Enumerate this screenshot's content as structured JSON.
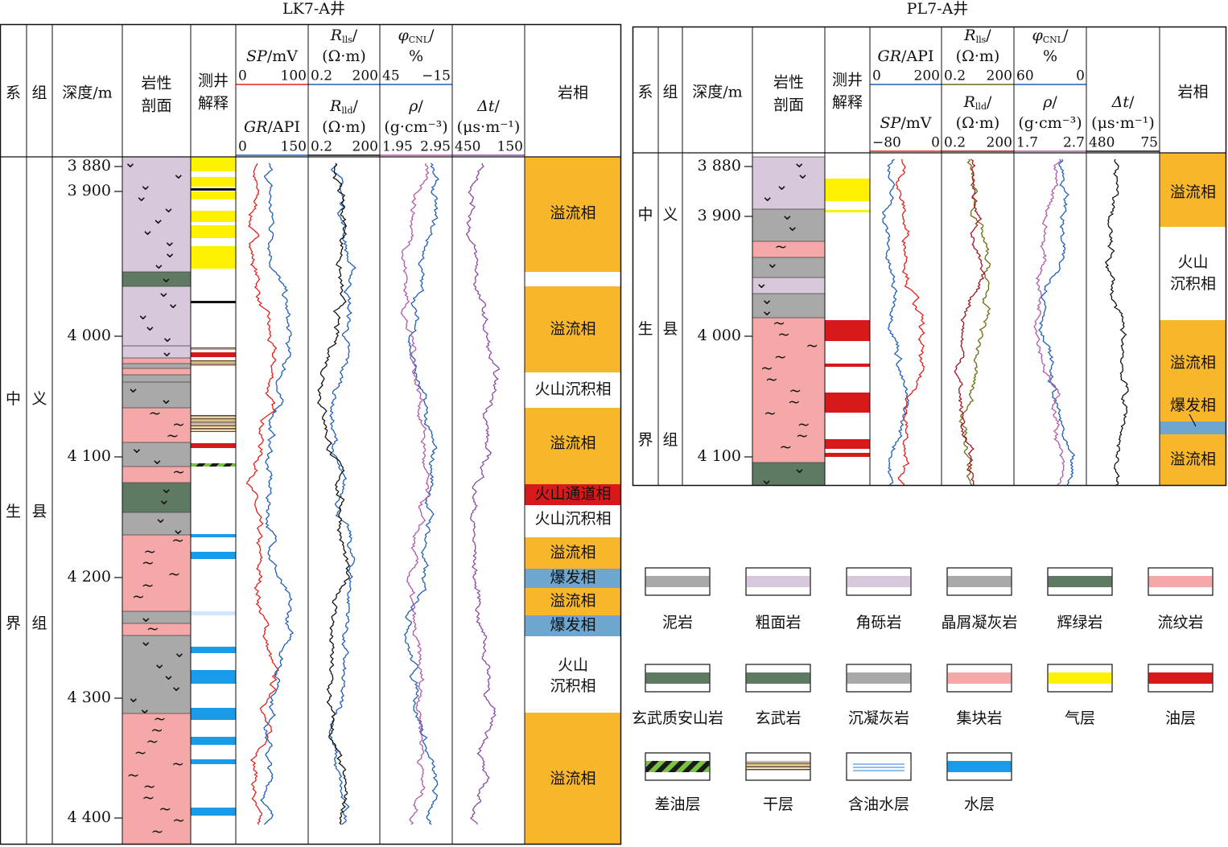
{
  "wells": [
    {
      "title": "LK7-A井",
      "headers": {
        "system": "系",
        "group": "组",
        "depth": "深度/m",
        "lithology": [
          "岩性",
          "剖面"
        ],
        "interpretation": [
          "测井",
          "解释"
        ],
        "facies": "岩相"
      },
      "curves": [
        {
          "name": "SP",
          "tail": "/mV",
          "scale": [
            "0",
            "100"
          ],
          "color": "#e0201b"
        },
        {
          "name": "GR",
          "tail": "/API",
          "scale": [
            "0",
            "150"
          ],
          "color": "#1f5fb4"
        },
        {
          "name": "R",
          "sub": "lls",
          "tail": "/",
          "unit": "(Ω·m)",
          "scale": [
            "0.2",
            "200"
          ],
          "color": "#1f5fb4"
        },
        {
          "name": "R",
          "sub": "lld",
          "tail": "/",
          "unit": "(Ω·m)",
          "scale": [
            "0.2",
            "200"
          ],
          "color": "#111111"
        },
        {
          "name": "φ",
          "sub": "CNL",
          "tail": "/",
          "unit": "%",
          "scale": [
            "45",
            "−15"
          ],
          "color": "#1f5fb4"
        },
        {
          "name": "ρ",
          "tail": "/",
          "unit": "(g·cm⁻³)",
          "scale": [
            "1.95",
            "2.95"
          ],
          "color": "#b05aa8"
        },
        {
          "name": "Δt",
          "tail": "/",
          "unit": "(μs·m⁻¹)",
          "scale": [
            "450",
            "150"
          ],
          "color": "#8a4aa0"
        }
      ],
      "depth_ticks": [
        "3 880",
        "3 900",
        "4 000",
        "4 100",
        "4 200",
        "4 300",
        "4 400"
      ],
      "system": [
        "中",
        "生",
        "界"
      ],
      "group": [
        "义",
        "县",
        "组"
      ],
      "facies": [
        "溢流相",
        "溢流相",
        "火山沉积相",
        "溢流相",
        "火山通道相",
        "火山沉积相",
        "溢流相",
        "爆发相",
        "溢流相",
        "爆发相",
        [
          "火山",
          "沉积相"
        ],
        "溢流相"
      ]
    },
    {
      "title": "PL7-A井",
      "headers": {
        "system": "系",
        "group": "组",
        "depth": "深度/m",
        "lithology": [
          "岩性",
          "剖面"
        ],
        "interpretation": [
          "测井",
          "解释"
        ],
        "facies": "岩相"
      },
      "curves": [
        {
          "name": "GR",
          "tail": "/API",
          "scale": [
            "0",
            "200"
          ],
          "color": "#1f5fb4"
        },
        {
          "name": "SP",
          "tail": "/mV",
          "scale": [
            "−80",
            "0"
          ],
          "color": "#e0201b"
        },
        {
          "name": "R",
          "sub": "lls",
          "tail": "/",
          "unit": "(Ω·m)",
          "scale": [
            "0.2",
            "200"
          ],
          "color": "#6b6b12"
        },
        {
          "name": "R",
          "sub": "lld",
          "tail": "/",
          "unit": "(Ω·m)",
          "scale": [
            "0.2",
            "200"
          ],
          "color": "#a0141e"
        },
        {
          "name": "φ",
          "sub": "CNL",
          "tail": "/",
          "unit": "%",
          "scale": [
            "60",
            "0"
          ],
          "color": "#1f5fb4"
        },
        {
          "name": "ρ",
          "tail": "/",
          "unit": "(g·cm⁻³)",
          "scale": [
            "1.7",
            "2.7"
          ],
          "color": "#b05aa8"
        },
        {
          "name": "Δt",
          "tail": "/",
          "unit": "(μs·m⁻¹)",
          "scale": [
            "480",
            "75"
          ],
          "color": "#111111"
        }
      ],
      "depth_ticks": [
        "3 880",
        "3 900",
        "4 000",
        "4 100"
      ],
      "system": [
        "中",
        "生",
        "界"
      ],
      "group": [
        "义",
        "县",
        "组"
      ],
      "facies": [
        "溢流相",
        [
          "火山",
          "沉积相"
        ],
        "溢流相",
        "爆发相",
        "溢流相"
      ]
    }
  ],
  "legend": [
    "泥岩",
    "粗面岩",
    "角砾岩",
    "晶屑凝灰岩",
    "辉绿岩",
    "流纹岩",
    "玄武质安山岩",
    "玄武岩",
    "沉凝灰岩",
    "集块岩",
    "气层",
    "油层",
    "差油层",
    "干层",
    "含油水层",
    "水层"
  ]
}
